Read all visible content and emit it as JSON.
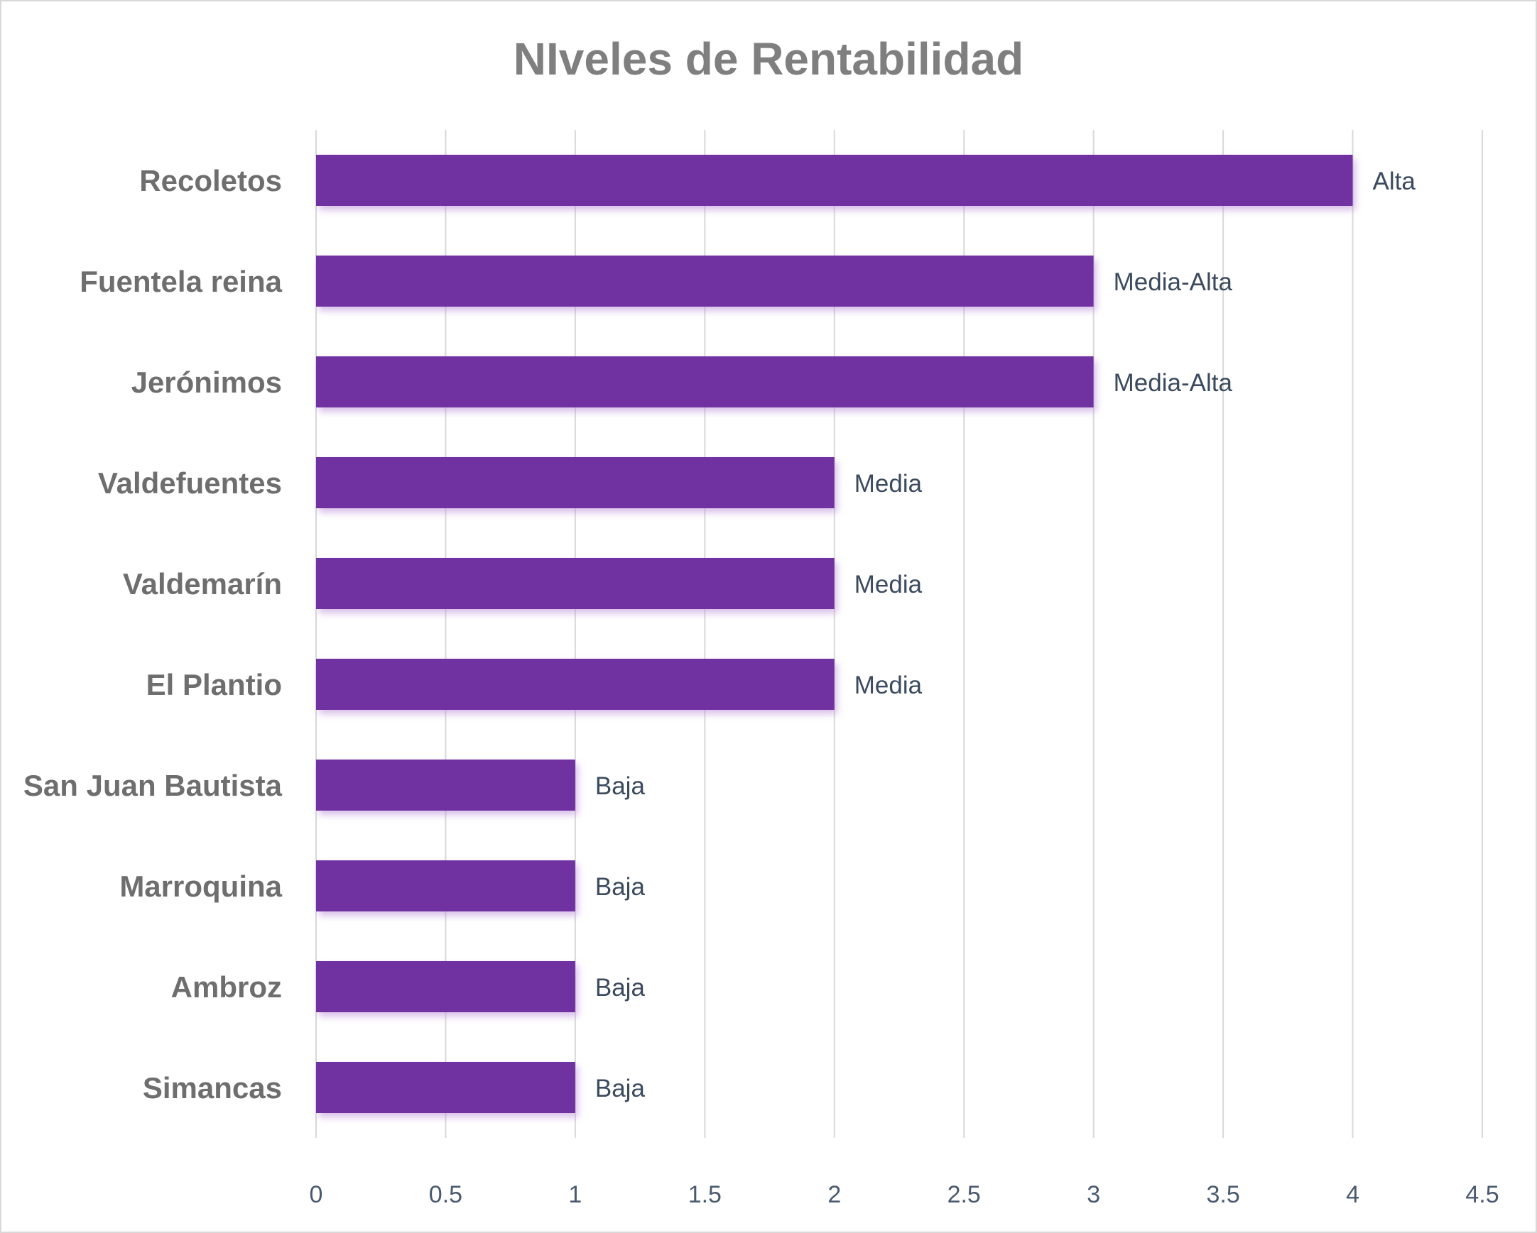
{
  "chart_data": {
    "type": "bar",
    "orientation": "horizontal",
    "title": "NIveles de Rentabilidad",
    "categories": [
      "Recoletos",
      "Fuentela reina",
      "Jerónimos",
      "Valdefuentes",
      "Valdemarín",
      "El Plantio",
      "San Juan Bautista",
      "Marroquina",
      "Ambroz",
      "Simancas"
    ],
    "values": [
      4,
      3,
      3,
      2,
      2,
      2,
      1,
      1,
      1,
      1
    ],
    "data_labels": [
      "Alta",
      "Media-Alta",
      "Media-Alta",
      "Media",
      "Media",
      "Media",
      "Baja",
      "Baja",
      "Baja",
      "Baja"
    ],
    "xlim": [
      0,
      4.5
    ],
    "xticks": [
      "0",
      "0.5",
      "1",
      "1.5",
      "2",
      "2.5",
      "3",
      "3.5",
      "4",
      "4.5"
    ],
    "xlabel": "",
    "ylabel": "",
    "grid": "vertical",
    "legend": "none",
    "bar_color": "#7030a0"
  }
}
